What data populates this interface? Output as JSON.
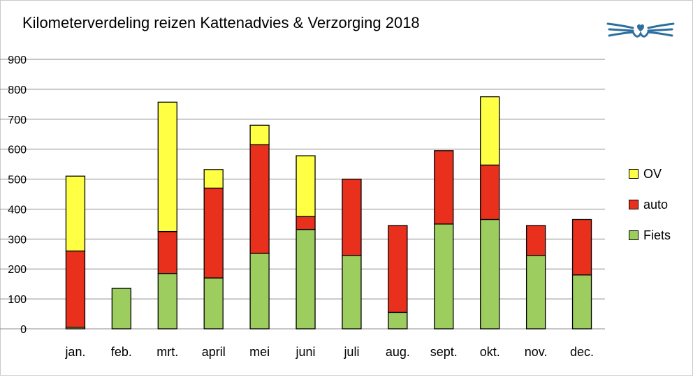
{
  "title": "Kilometerverdeling reizen Kattenadvies & Verzorging 2018",
  "logo": {
    "icon": "cat-face-icon",
    "color": "#2e6f9e"
  },
  "legend": [
    {
      "label": "OV",
      "color": "#ffff44"
    },
    {
      "label": "auto",
      "color": "#e8301c"
    },
    {
      "label": "Fiets",
      "color": "#9dcc5f"
    }
  ],
  "chart_data": {
    "type": "bar",
    "stacked": true,
    "title": "Kilometerverdeling reizen Kattenadvies & Verzorging 2018",
    "categories": [
      "jan.",
      "feb.",
      "mrt.",
      "april",
      "mei",
      "juni",
      "juli",
      "aug.",
      "sept.",
      "okt.",
      "nov.",
      "dec."
    ],
    "series": [
      {
        "name": "Fiets",
        "color": "#9dcc5f",
        "values": [
          5,
          135,
          185,
          170,
          252,
          332,
          245,
          55,
          350,
          365,
          245,
          180
        ]
      },
      {
        "name": "auto",
        "color": "#e8301c",
        "values": [
          255,
          0,
          140,
          300,
          363,
          43,
          255,
          290,
          245,
          182,
          100,
          185
        ]
      },
      {
        "name": "OV",
        "color": "#ffff44",
        "values": [
          250,
          0,
          432,
          62,
          65,
          203,
          0,
          0,
          0,
          228,
          0,
          0
        ]
      }
    ],
    "ylim": [
      0,
      900
    ],
    "yticks": [
      0,
      100,
      200,
      300,
      400,
      500,
      600,
      700,
      800,
      900
    ],
    "grid": true,
    "legend_position": "right"
  }
}
